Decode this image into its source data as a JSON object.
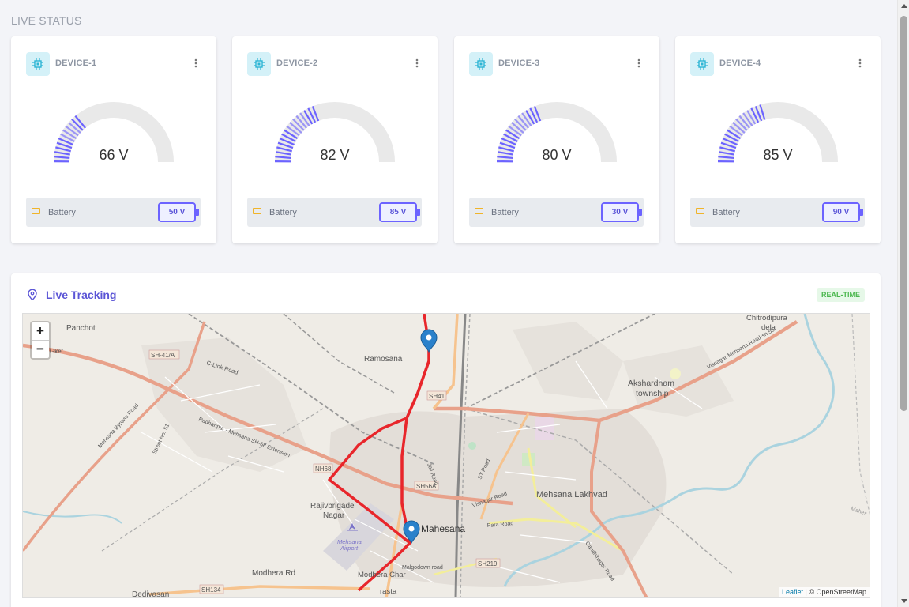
{
  "section_title": "LIVE STATUS",
  "devices": [
    {
      "name": "DEVICE-1",
      "voltage_label": "66 V",
      "gauge_fraction": 0.3,
      "battery_label": "Battery",
      "battery_value": "50 V"
    },
    {
      "name": "DEVICE-2",
      "voltage_label": "82 V",
      "gauge_fraction": 0.41,
      "battery_label": "Battery",
      "battery_value": "85 V"
    },
    {
      "name": "DEVICE-3",
      "voltage_label": "80 V",
      "gauge_fraction": 0.4,
      "battery_label": "Battery",
      "battery_value": "30 V"
    },
    {
      "name": "DEVICE-4",
      "voltage_label": "85 V",
      "gauge_fraction": 0.43,
      "battery_label": "Battery",
      "battery_value": "90 V"
    }
  ],
  "tracking": {
    "title": "Live Tracking",
    "badge": "REAL-TIME"
  },
  "map": {
    "zoom_in": "+",
    "zoom_out": "−",
    "attribution_link": "Leaflet",
    "attribution_text": " | © OpenStreetMap",
    "labels": {
      "panchot": "Panchot",
      "chitrodipura": "Chitrodipura",
      "dela": "dela",
      "ramosana": "Ramosana",
      "sh41a": "SH-41/A",
      "clink": "C-Link Road",
      "akshardham": "Akshardham",
      "township": "township",
      "sh41": "SH41",
      "nh68": "NH68",
      "sh56a": "SH56A",
      "rajiv": "Rajivbrigade",
      "nagar": "Nagar",
      "mahesana": "Mahesana",
      "lakhvad": "Mehsana Lakhvad",
      "airport1": "Mehsana",
      "airport2": "Airport",
      "modhera": "Modhera Rd",
      "dedivasan": "Dedivasan",
      "sh134": "SH134",
      "sh219": "SH219",
      "modheraChar": "Modhera Char",
      "rasta": "rasta",
      "malgodown": "Malgodown road",
      "pararoad": "Para Road",
      "st": "ST Road",
      "visnagar": "Visnagar Road",
      "bypass": "Mehsana Bypass Road",
      "radhanpur": "Radhanpur - Mehsana SH-68 Extension",
      "gandhinagar": "Gandhinagar Road",
      "visnagarMeh": "Visnagar-Mehsana Road-sh-56",
      "jail": "Jail Road",
      "street51": "Street No. 51",
      "gket": "Gket",
      "mahes": "Mahes"
    }
  },
  "colors": {
    "accent": "#6c63ff",
    "route": "#e8262b",
    "marker": "#2a81cb",
    "road_major": "#e8a18a"
  }
}
